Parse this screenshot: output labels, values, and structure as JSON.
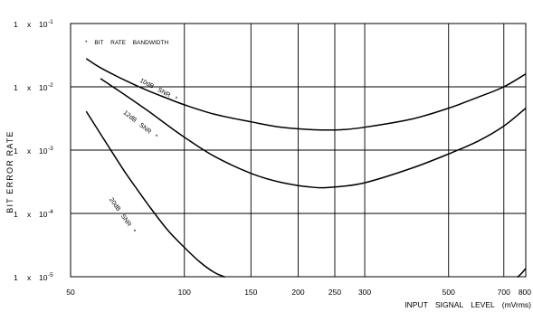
{
  "chart_data": {
    "type": "line",
    "title": "",
    "xlabel": "INPUT SIGNAL LEVEL (mVrms)",
    "ylabel": "BIT ERROR RATE",
    "x_scale": "log",
    "y_scale": "log",
    "xlim": [
      50,
      800
    ],
    "ylim": [
      1e-05,
      0.1
    ],
    "grid": true,
    "annotation": "* BIT RATE BANDWIDTH",
    "x_ticks": [
      {
        "value": 50,
        "label": "50"
      },
      {
        "value": 100,
        "label": "100"
      },
      {
        "value": 150,
        "label": "150"
      },
      {
        "value": 200,
        "label": "200"
      },
      {
        "value": 250,
        "label": "250"
      },
      {
        "value": 300,
        "label": "300"
      },
      {
        "value": 500,
        "label": "500"
      },
      {
        "value": 700,
        "label": "700"
      },
      {
        "value": 800,
        "label": "800"
      }
    ],
    "y_ticks": [
      {
        "value": 0.1,
        "mantissa": "1",
        "times": "x",
        "base": "10",
        "exp": "-1"
      },
      {
        "value": 0.01,
        "mantissa": "1",
        "times": "x",
        "base": "10",
        "exp": "-2"
      },
      {
        "value": 0.001,
        "mantissa": "1",
        "times": "x",
        "base": "10",
        "exp": "-3"
      },
      {
        "value": 0.0001,
        "mantissa": "1",
        "times": "x",
        "base": "10",
        "exp": "-4"
      },
      {
        "value": 1e-05,
        "mantissa": "1",
        "times": "x",
        "base": "10",
        "exp": "-5"
      }
    ],
    "series": [
      {
        "name": "10dB SNR *",
        "points": [
          [
            55,
            0.028
          ],
          [
            60,
            0.02
          ],
          [
            70,
            0.0125
          ],
          [
            80,
            0.0087
          ],
          [
            90,
            0.0066
          ],
          [
            100,
            0.0052
          ],
          [
            120,
            0.0037
          ],
          [
            150,
            0.0028
          ],
          [
            180,
            0.0023
          ],
          [
            220,
            0.0021
          ],
          [
            260,
            0.0021
          ],
          [
            300,
            0.0023
          ],
          [
            400,
            0.0031
          ],
          [
            500,
            0.0046
          ],
          [
            600,
            0.0069
          ],
          [
            700,
            0.01
          ],
          [
            800,
            0.016
          ]
        ]
      },
      {
        "name": "12dB SNR *",
        "points": [
          [
            60,
            0.0135
          ],
          [
            65,
            0.0098
          ],
          [
            70,
            0.0073
          ],
          [
            80,
            0.0042
          ],
          [
            90,
            0.0025
          ],
          [
            100,
            0.0016
          ],
          [
            120,
            0.0008
          ],
          [
            150,
            0.00043
          ],
          [
            180,
            0.00031
          ],
          [
            220,
            0.000258
          ],
          [
            250,
            0.000262
          ],
          [
            300,
            0.000305
          ],
          [
            400,
            0.00052
          ],
          [
            500,
            0.00087
          ],
          [
            600,
            0.0014
          ],
          [
            700,
            0.0024
          ],
          [
            800,
            0.0046
          ]
        ]
      },
      {
        "name": "20dB SNR *",
        "points": [
          [
            55,
            0.0041
          ],
          [
            60,
            0.0018
          ],
          [
            65,
            0.00085
          ],
          [
            70,
            0.00043
          ],
          [
            75,
            0.00024
          ],
          [
            80,
            0.00014
          ],
          [
            90,
            5.6e-05
          ],
          [
            100,
            2.9e-05
          ],
          [
            110,
            1.7e-05
          ],
          [
            120,
            1.17e-05
          ],
          [
            128,
            9.9e-06
          ]
        ]
      },
      {
        "name": "",
        "points": [
          [
            760,
            9.8e-06
          ],
          [
            780,
            1.13e-05
          ],
          [
            800,
            1.35e-05
          ]
        ]
      }
    ],
    "series_label_positions": [
      {
        "label": "10dB SNR *",
        "x": 85,
        "y": 0.0085,
        "angle": 28
      },
      {
        "label": "12dB SNR *",
        "x": 76,
        "y": 0.0024,
        "angle": 38
      },
      {
        "label": "20dB SNR *",
        "x": 68,
        "y": 9e-05,
        "angle": 55
      }
    ],
    "colors": {
      "line": "#000000",
      "grid": "#000000",
      "background": "#ffffff"
    }
  }
}
